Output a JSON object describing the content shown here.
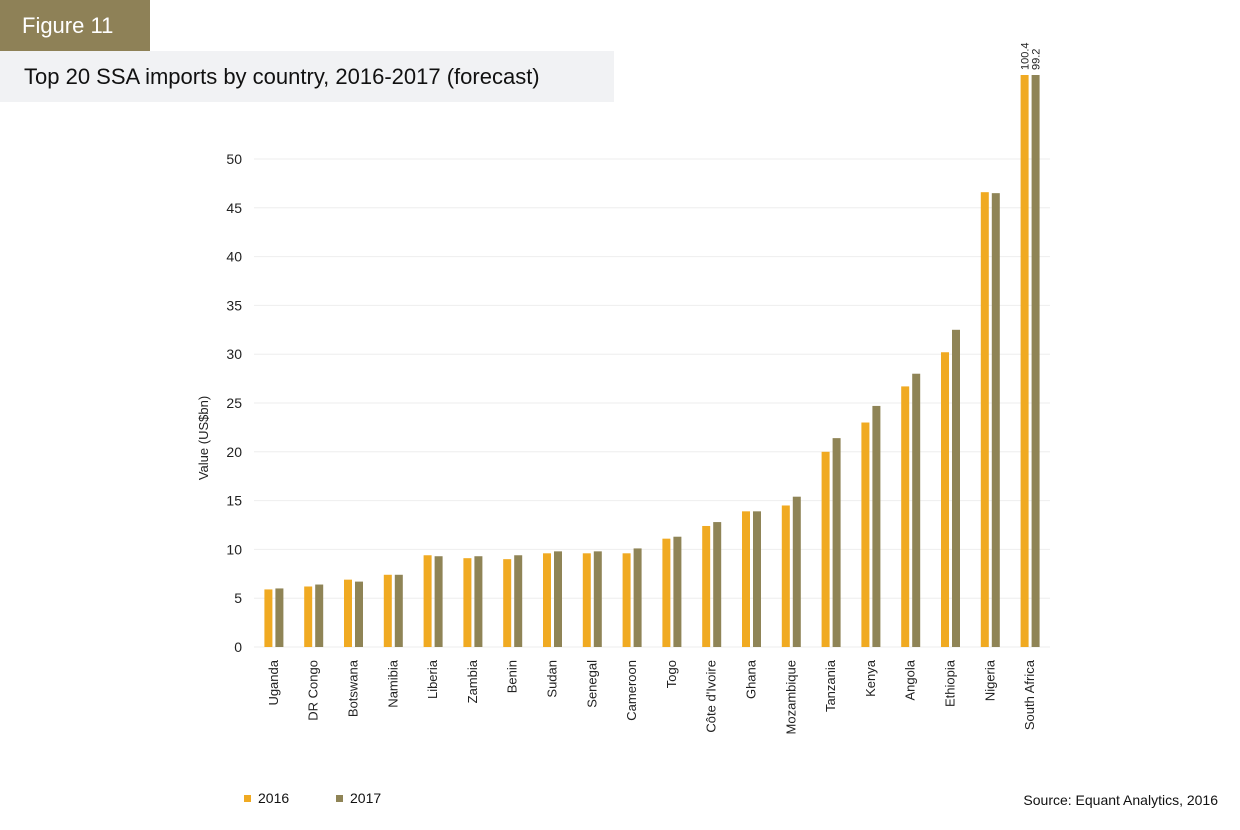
{
  "header": {
    "figure_label": "Figure 11",
    "title": "Top 20 SSA imports by country, 2016-2017 (forecast)"
  },
  "colors": {
    "badge": "#8e8157",
    "title_bg": "#f1f2f4",
    "series_2016": "#f0aa22",
    "series_2017": "#8f8456",
    "grid": "#eeeeee"
  },
  "legend": {
    "items": [
      {
        "label": "2016",
        "color": "#f0aa22"
      },
      {
        "label": "2017",
        "color": "#8f8456"
      }
    ]
  },
  "source": "Source: Equant Analytics, 2016",
  "chart_data": {
    "type": "bar",
    "title": "Top 20 SSA imports by country, 2016-2017 (forecast)",
    "xlabel": "",
    "ylabel": "Value (US$bn)",
    "ylim": [
      0,
      50
    ],
    "yticks": [
      0,
      5,
      10,
      15,
      20,
      25,
      30,
      35,
      40,
      45,
      50
    ],
    "grid": true,
    "legend_position": "bottom-left",
    "categories": [
      "Uganda",
      "DR Congo",
      "Botswana",
      "Namibia",
      "Liberia",
      "Zambia",
      "Benin",
      "Sudan",
      "Senegal",
      "Cameroon",
      "Togo",
      "Côte d'Ivoire",
      "Ghana",
      "Mozambique",
      "Tanzania",
      "Kenya",
      "Angola",
      "Ethiopia",
      "Nigeria",
      "South Africa"
    ],
    "series": [
      {
        "name": "2016",
        "values": [
          5.9,
          6.2,
          6.9,
          7.4,
          9.4,
          9.1,
          9.0,
          9.6,
          9.6,
          9.6,
          11.1,
          12.4,
          13.9,
          14.5,
          20.0,
          23.0,
          26.7,
          30.2,
          46.6,
          100.4
        ]
      },
      {
        "name": "2017",
        "values": [
          6.0,
          6.4,
          6.7,
          7.4,
          9.3,
          9.3,
          9.4,
          9.8,
          9.8,
          10.1,
          11.3,
          12.8,
          13.9,
          15.4,
          21.4,
          24.7,
          28.0,
          32.5,
          46.5,
          99.2
        ]
      }
    ],
    "annotations": [
      {
        "category": "South Africa",
        "series": "2016",
        "text": "100.4"
      },
      {
        "category": "South Africa",
        "series": "2017",
        "text": "99.2"
      }
    ]
  }
}
